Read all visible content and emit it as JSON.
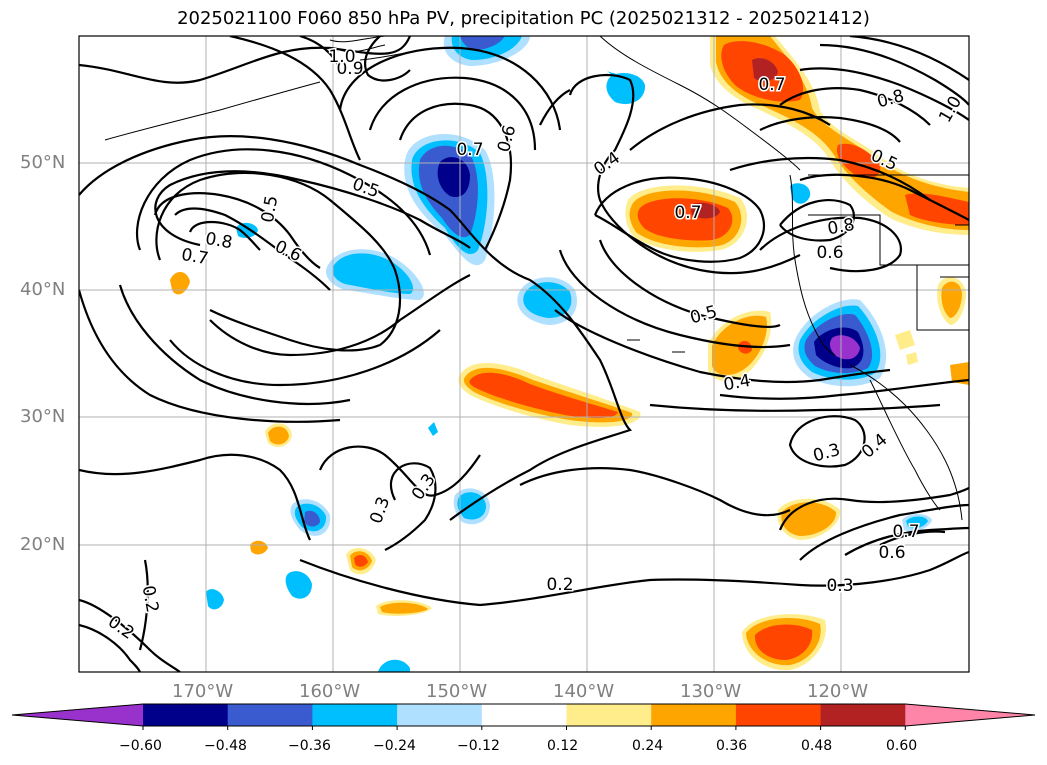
{
  "title": "2025021100 F060 850 hPa PV, precipitation PC (2025021312 - 2025021412)",
  "lat_labels": [
    "20°N",
    "30°N",
    "40°N",
    "50°N"
  ],
  "lon_labels": [
    "170°W",
    "160°W",
    "150°W",
    "140°W",
    "130°W",
    "120°W"
  ],
  "contour_labels": [
    "0.2",
    "0.2",
    "0.2",
    "0.3",
    "0.3",
    "0.3",
    "0.3",
    "0.4",
    "0.4",
    "0.4",
    "0.5",
    "0.5",
    "0.5",
    "0.5",
    "0.6",
    "0.6",
    "0.6",
    "0.6",
    "0.7",
    "0.7",
    "0.7",
    "0.7",
    "0.7",
    "0.8",
    "0.8",
    "0.8",
    "0.9",
    "1.0",
    "1.0"
  ],
  "colorbar": {
    "ticks": [
      "−0.60",
      "−0.48",
      "−0.36",
      "−0.24",
      "−0.12",
      "0.12",
      "0.24",
      "0.36",
      "0.48",
      "0.60"
    ],
    "colors": [
      "#9932cc",
      "#00008b",
      "#3a5bd0",
      "#00bfff",
      "#b0e0ff",
      "#ffffff",
      "#ffec8b",
      "#ffa500",
      "#ff4500",
      "#b22222",
      "#ff85a8"
    ]
  },
  "colors": {
    "grid": "#b0b0b0",
    "contour": "#000000",
    "axis_label": "#808080"
  }
}
